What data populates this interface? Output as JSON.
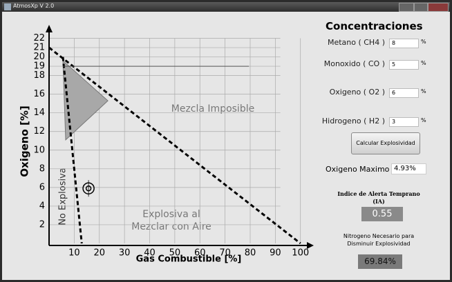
{
  "window": {
    "title": "AtmosXp V 2.0"
  },
  "chart_data": {
    "type": "line",
    "xlabel": "Gas Combustible [%]",
    "ylabel": "Oxigeno [%]",
    "xlim": [
      0,
      102
    ],
    "ylim": [
      0,
      23
    ],
    "xticks": [
      10,
      20,
      30,
      40,
      50,
      60,
      70,
      80,
      90,
      100
    ],
    "yticks": [
      2,
      4,
      6,
      8,
      10,
      12,
      14,
      16,
      18,
      19,
      20,
      21,
      22
    ],
    "grid": true,
    "series": [
      {
        "x": [
          0,
          100
        ],
        "values": [
          21,
          0
        ],
        "color": "#000000",
        "style": "dashed"
      },
      {
        "x": [
          5.5,
          13
        ],
        "values": [
          20,
          0
        ],
        "color": "#000000",
        "style": "dashed"
      },
      {
        "x": [
          5.5,
          79.5
        ],
        "values": [
          19,
          19
        ],
        "color": "#555555",
        "style": "solid"
      }
    ],
    "polygon": {
      "x": [
        5.5,
        6.6,
        23.4
      ],
      "values": [
        19.6,
        11.1,
        15.3
      ],
      "color": "#a8a8a8"
    },
    "point": {
      "x": 15.7,
      "value": 5.9
    },
    "annotations": [
      "Mezcla Imposible",
      "No Explosiva",
      "Explosiva al",
      "Mezclar con Aire"
    ]
  },
  "panel": {
    "title": "Concentraciones",
    "fields": [
      {
        "label": "Metano ( CH4 )",
        "value": "8",
        "unit": "%"
      },
      {
        "label": "Monoxido ( CO )",
        "value": "5",
        "unit": "%"
      },
      {
        "label": "Oxigeno ( O2 )",
        "value": "6",
        "unit": "%"
      },
      {
        "label": "Hidrogeno ( H2 )",
        "value": "3",
        "unit": "%"
      }
    ],
    "button": "Calcular  Explosividad",
    "max_oxygen": {
      "label": "Oxigeno Maximo",
      "value": "4.93%"
    },
    "alert": {
      "title": [
        "Indice de Alerta Temprano",
        "(IA)"
      ],
      "value": "0.55"
    },
    "nitrogen": {
      "title": [
        "Nitrogeno Necesario para",
        "Disminuir Explosividad"
      ],
      "value": "69.84%"
    }
  }
}
